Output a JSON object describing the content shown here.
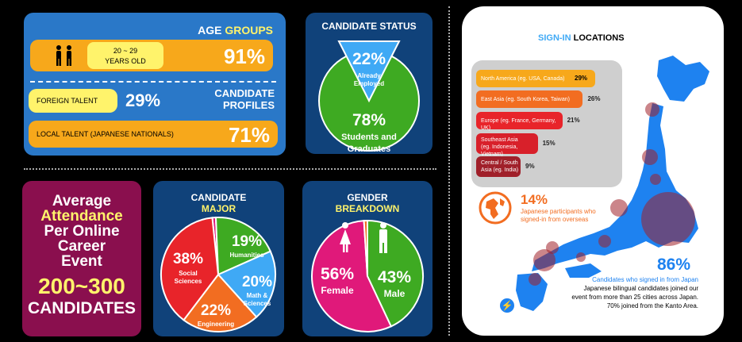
{
  "colors": {
    "orange": "#f7a81b",
    "yellow": "#fff36b",
    "blue": "#2a78c8",
    "navy": "#10427a",
    "green": "#3eaa22",
    "red": "#e8242a",
    "pink": "#e0197a",
    "maroon": "#8a0f4e",
    "sky": "#3fa9f5",
    "jpblue": "#1e82f0",
    "orange2": "#f26d21"
  },
  "age": {
    "title_a": "AGE ",
    "title_b": "GROUPS",
    "range": "20 ~ 29",
    "range2": "YEARS OLD",
    "pct": "91%"
  },
  "profiles": {
    "title1": "CANDIDATE",
    "title2": "PROFILES",
    "foreign_label": "FOREIGN TALENT",
    "foreign_pct": "29%",
    "local_label": "LOCAL TALENT (JAPANESE NATIONALS)",
    "local_pct": "71%"
  },
  "status": {
    "title": "CANDIDATE STATUS",
    "emp_pct": "22%",
    "emp_l1": "Already",
    "emp_l2": "Employed",
    "stu_pct": "78%",
    "stu_l1": "Students and",
    "stu_l2": "Graduates"
  },
  "attendance": {
    "l1": "Average",
    "l2": "Attendance",
    "l3": "Per Online",
    "l4": "Career",
    "l5": "Event",
    "num": "200~300",
    "unit": "CANDIDATES"
  },
  "major": {
    "title1": "CANDIDATE",
    "title2": "MAJOR",
    "soc_pct": "38%",
    "soc_l1": "Social",
    "soc_l2": "Sciences",
    "hum_pct": "19%",
    "hum_l1": "Humanities",
    "math_pct": "20%",
    "math_l1": "Math &",
    "math_l2": "Sciences",
    "eng_pct": "22%",
    "eng_l1": "Engineering"
  },
  "gender": {
    "title1": "GENDER",
    "title2": "BREAKDOWN",
    "fem_pct": "56%",
    "fem_l": "Female",
    "male_pct": "43%",
    "male_l": "Male"
  },
  "signin": {
    "title_a": "SIGN-IN ",
    "title_b": "LOCATIONS",
    "regions": [
      {
        "name": "North America (eg. USA, Canada)",
        "pct": "29%"
      },
      {
        "name": "East Asia (eg. South Korea, Taiwan)",
        "pct": "26%"
      },
      {
        "name": "Europe (eg. France, Germany, UK)",
        "pct": "21%"
      },
      {
        "name": "Southeast Asia",
        "name2": "(eg. Indonesia, Vietnam)",
        "pct": "15%"
      },
      {
        "name": "Central / South",
        "name2": "Asia (eg. India)",
        "pct": "9%"
      }
    ],
    "overseas_pct": "14%",
    "overseas_l1": "Japanese participants who",
    "overseas_l2": "signed-in from overseas",
    "japan_pct": "86%",
    "japan_l1": "Candidates who signed in from Japan",
    "japan_l2": "Japanese bilingual candidates joined our",
    "japan_l3": "event from more than 25 cities across Japan.",
    "japan_l4": "70% joined from the Kanto Area."
  },
  "chart_data": [
    {
      "type": "bar",
      "title": "AGE GROUPS",
      "categories": [
        "20 ~ 29 YEARS OLD"
      ],
      "values": [
        91
      ]
    },
    {
      "type": "bar",
      "title": "CANDIDATE PROFILES",
      "categories": [
        "FOREIGN TALENT",
        "LOCAL TALENT (JAPANESE NATIONALS)"
      ],
      "values": [
        29,
        71
      ]
    },
    {
      "type": "pie",
      "title": "CANDIDATE STATUS",
      "categories": [
        "Already Employed",
        "Students and Graduates"
      ],
      "values": [
        22,
        78
      ]
    },
    {
      "type": "pie",
      "title": "CANDIDATE MAJOR",
      "categories": [
        "Social Sciences",
        "Humanities",
        "Math & Sciences",
        "Engineering"
      ],
      "values": [
        38,
        19,
        20,
        22
      ]
    },
    {
      "type": "pie",
      "title": "GENDER BREAKDOWN",
      "categories": [
        "Female",
        "Male"
      ],
      "values": [
        56,
        43
      ]
    },
    {
      "type": "bar",
      "title": "SIGN-IN LOCATIONS",
      "categories": [
        "North America (eg. USA, Canada)",
        "East Asia (eg. South Korea, Taiwan)",
        "Europe (eg. France, Germany, UK)",
        "Southeast Asia (eg. Indonesia, Vietnam)",
        "Central / South Asia (eg. India)"
      ],
      "values": [
        29,
        26,
        21,
        15,
        9
      ]
    },
    {
      "type": "pie",
      "title": "SIGN-IN LOCATIONS",
      "categories": [
        "Japanese participants who signed-in from overseas",
        "Candidates who signed in from Japan"
      ],
      "values": [
        14,
        86
      ]
    }
  ]
}
